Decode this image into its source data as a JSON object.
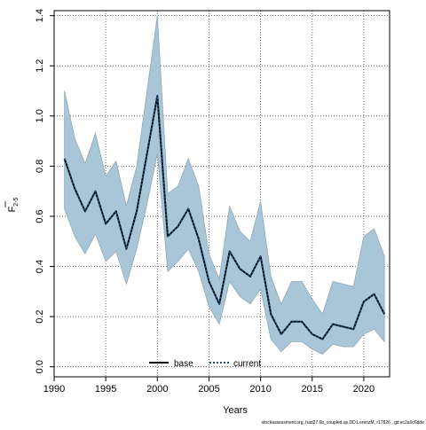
{
  "chart_data": {
    "type": "area",
    "title": "",
    "xlabel": "Years",
    "ylabel_main": "F",
    "ylabel_sub": "2-5",
    "xlim": [
      1990,
      2022.5
    ],
    "ylim": [
      -0.04,
      1.42
    ],
    "xticks": [
      1990,
      1995,
      2000,
      2005,
      2010,
      2015,
      2020
    ],
    "yticks": [
      0.0,
      0.2,
      0.4,
      0.6,
      0.8,
      1.0,
      1.2,
      1.4
    ],
    "ytick_labels": [
      "0.0",
      "0.2",
      "0.4",
      "0.6",
      "0.8",
      "1.0",
      "1.2",
      "1.4"
    ],
    "grid": true,
    "legend_position": "bottom-center",
    "band_color": "#a9c6d8",
    "band_edge_color": "#8fa9b6",
    "x": [
      1991,
      1992,
      1993,
      1994,
      1995,
      1996,
      1997,
      1998,
      1999,
      2000,
      2001,
      2002,
      2003,
      2004,
      2005,
      2006,
      2007,
      2008,
      2009,
      2010,
      2011,
      2012,
      2013,
      2014,
      2015,
      2016,
      2017,
      2018,
      2019,
      2020,
      2021,
      2022
    ],
    "series": [
      {
        "name": "base",
        "color": "#000000",
        "style": "solid",
        "values": [
          0.83,
          0.71,
          0.62,
          0.7,
          0.57,
          0.62,
          0.47,
          0.62,
          0.85,
          1.08,
          0.52,
          0.56,
          0.63,
          0.51,
          0.34,
          0.25,
          0.46,
          0.39,
          0.36,
          0.44,
          0.21,
          0.13,
          0.18,
          0.18,
          0.13,
          0.11,
          0.17,
          0.16,
          0.15,
          0.26,
          0.29,
          0.21
        ]
      },
      {
        "name": "current",
        "color": "#1f4e79",
        "style": "dotted",
        "values": [
          0.83,
          0.71,
          0.62,
          0.7,
          0.57,
          0.62,
          0.47,
          0.62,
          0.85,
          1.08,
          0.52,
          0.56,
          0.63,
          0.51,
          0.34,
          0.25,
          0.46,
          0.39,
          0.36,
          0.44,
          0.21,
          0.13,
          0.18,
          0.18,
          0.13,
          0.11,
          0.17,
          0.16,
          0.15,
          0.26,
          0.29,
          0.21
        ]
      }
    ],
    "band": {
      "upper": [
        1.1,
        0.91,
        0.81,
        0.93,
        0.76,
        0.82,
        0.64,
        0.8,
        1.1,
        1.4,
        0.69,
        0.72,
        0.83,
        0.72,
        0.45,
        0.35,
        0.64,
        0.54,
        0.5,
        0.66,
        0.36,
        0.25,
        0.34,
        0.34,
        0.27,
        0.21,
        0.34,
        0.33,
        0.32,
        0.52,
        0.55,
        0.44
      ],
      "lower": [
        0.63,
        0.52,
        0.45,
        0.53,
        0.42,
        0.46,
        0.33,
        0.47,
        0.65,
        0.85,
        0.38,
        0.42,
        0.47,
        0.38,
        0.24,
        0.17,
        0.34,
        0.28,
        0.25,
        0.31,
        0.11,
        0.06,
        0.1,
        0.1,
        0.07,
        0.05,
        0.09,
        0.08,
        0.08,
        0.13,
        0.15,
        0.1
      ]
    },
    "footer": "stockassessment.org, had27.6b_coupled.qs.DD.LorenzM, r17826 , git:ec2a0c6dde"
  }
}
